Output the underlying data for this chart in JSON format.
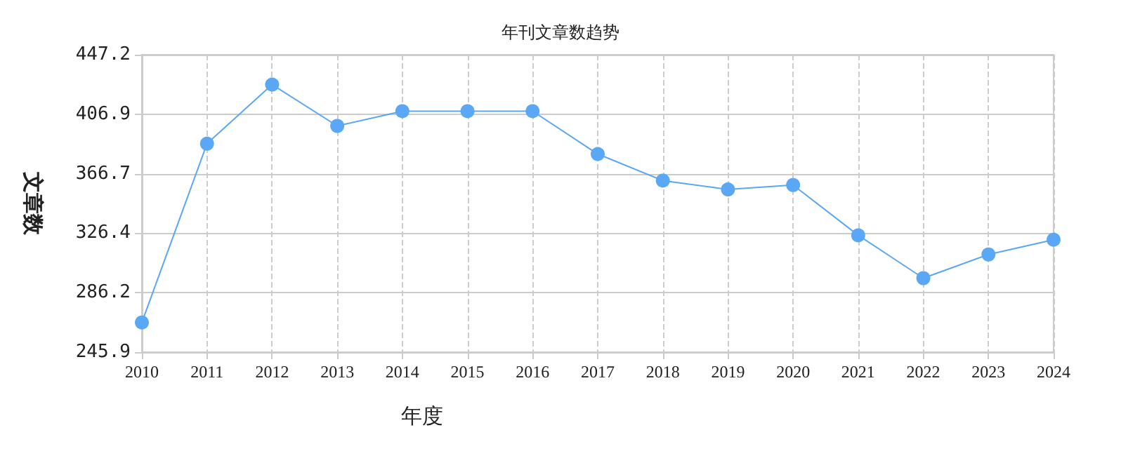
{
  "chart_data": {
    "type": "line",
    "title": "年刊文章数趋势",
    "xlabel": "年度",
    "ylabel": "文章数",
    "categories": [
      "2010",
      "2011",
      "2012",
      "2013",
      "2014",
      "2015",
      "2016",
      "2017",
      "2018",
      "2019",
      "2020",
      "2021",
      "2022",
      "2023",
      "2024"
    ],
    "series": [
      {
        "color": "#5aa7f5",
        "values": [
          266,
          387,
          427,
          399,
          409,
          409,
          409,
          380,
          362,
          356,
          359,
          325,
          296,
          312,
          322
        ]
      }
    ],
    "ylim": [
      245.9,
      447.2
    ],
    "yticks": [
      245.9,
      286.2,
      326.4,
      366.7,
      406.9,
      447.2
    ],
    "grid": true,
    "marker": "circle",
    "line_style": "solid"
  }
}
